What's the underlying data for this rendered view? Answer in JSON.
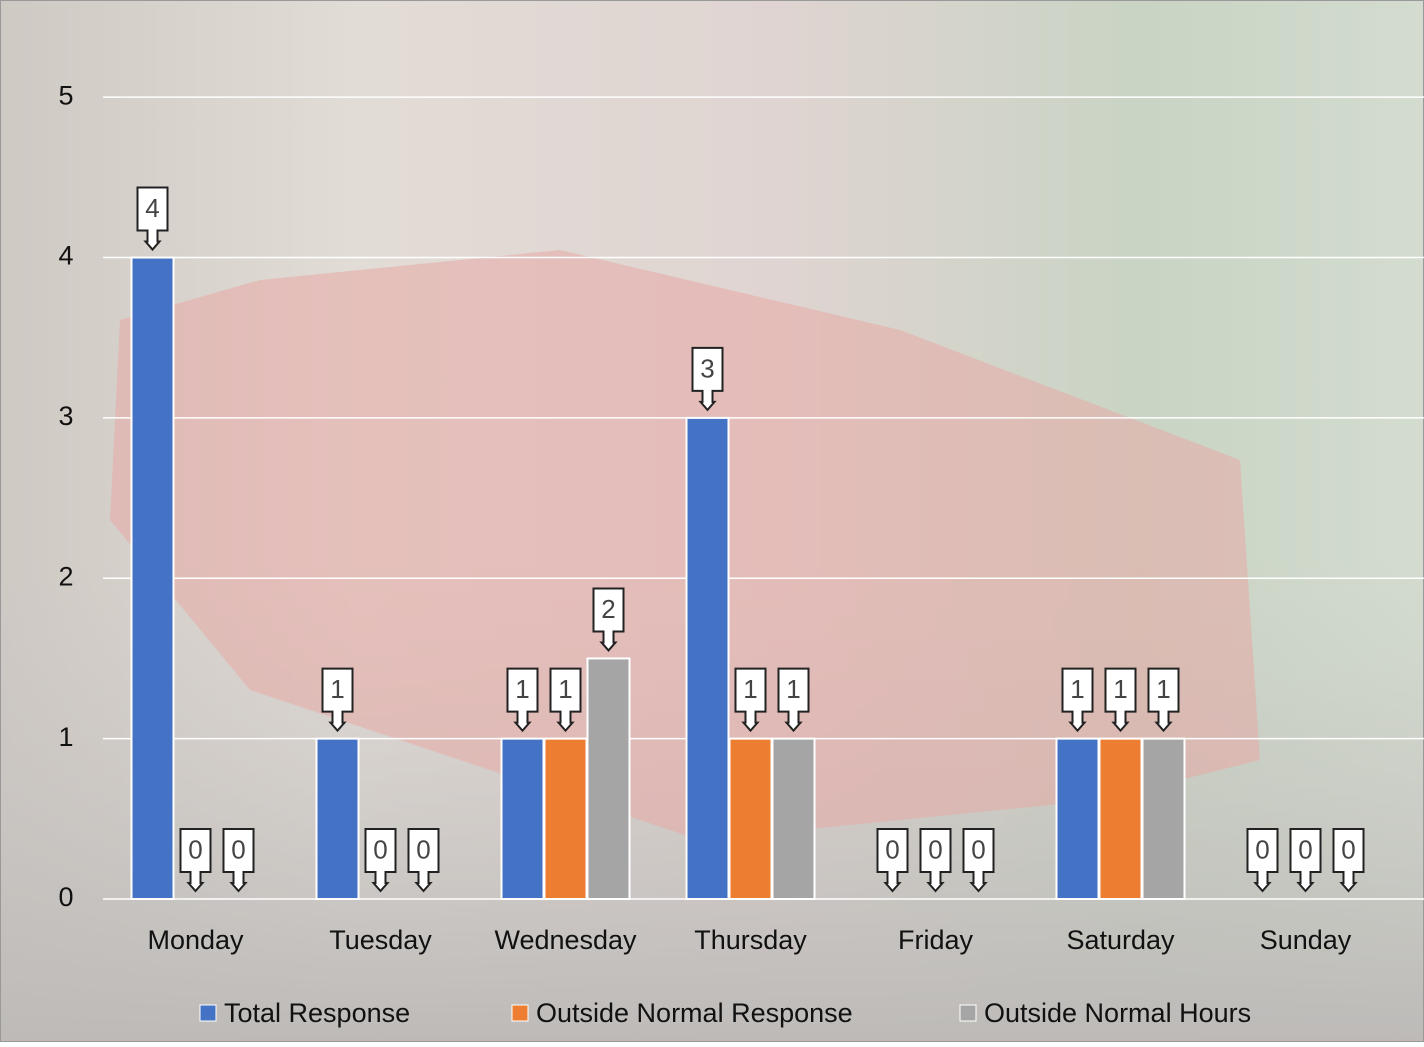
{
  "chart_data": {
    "type": "bar",
    "categories": [
      "Monday",
      "Tuesday",
      "Wednesday",
      "Thursday",
      "Friday",
      "Saturday",
      "Sunday"
    ],
    "series": [
      {
        "name": "Total Response",
        "color": "#4472c4",
        "values": [
          4,
          1,
          1,
          3,
          0,
          1,
          0
        ]
      },
      {
        "name": "Outside Normal Response",
        "color": "#ed7d31",
        "values": [
          0,
          0,
          1,
          1,
          0,
          1,
          0
        ]
      },
      {
        "name": "Outside Normal Hours",
        "color": "#a5a5a5",
        "values": [
          0,
          0,
          1.5,
          1,
          0,
          1,
          0
        ],
        "value_labels": [
          "0",
          "0",
          "2",
          "1",
          "0",
          "1",
          "0"
        ]
      }
    ],
    "ylim": [
      0,
      5.5
    ],
    "yticks": [
      0,
      1,
      2,
      3,
      4,
      5
    ],
    "grid": true,
    "legend": "bottom"
  }
}
